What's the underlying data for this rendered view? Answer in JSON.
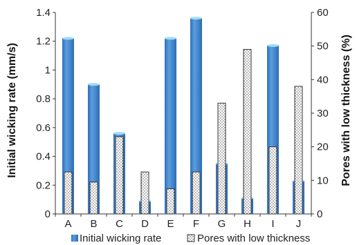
{
  "chart_data": {
    "type": "bar",
    "categories": [
      "A",
      "B",
      "C",
      "D",
      "E",
      "F",
      "G",
      "H",
      "I",
      "J"
    ],
    "series": [
      {
        "name": "Initial wicking rate",
        "axis": "left",
        "values": [
          1.22,
          0.9,
          0.56,
          0.09,
          1.22,
          1.36,
          0.35,
          0.11,
          1.17,
          0.23
        ],
        "color": "#4a8fd4"
      },
      {
        "name": "Pores with low thickness",
        "axis": "right",
        "values": [
          12.5,
          9.5,
          23,
          12.5,
          7.5,
          12.5,
          33,
          49,
          20,
          38
        ],
        "color": "#ffffff",
        "pattern": "dotted"
      }
    ],
    "ylabel_left": "Initial wicking rate (mm/s)",
    "ylabel_right": "Pores with low thickness (%)",
    "ylim_left": [
      0,
      1.4
    ],
    "ylim_right": [
      0,
      60
    ],
    "yticks_left": [
      "0",
      "0.2",
      "0.4",
      "0.6",
      "0.8",
      "1",
      "1.2",
      "1.4"
    ],
    "yticks_right": [
      "0",
      "10",
      "20",
      "30",
      "40",
      "50",
      "60"
    ],
    "grid": false,
    "legend_position": "bottom"
  }
}
